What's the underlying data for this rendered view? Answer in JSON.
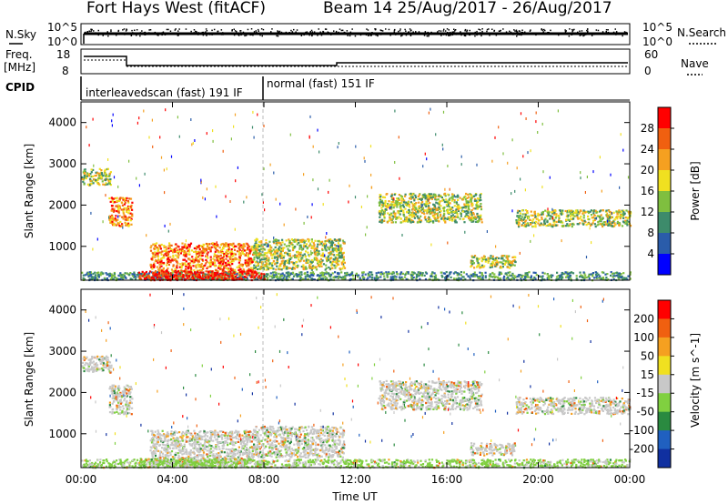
{
  "header": {
    "radar": "Fort Hays West (fitACF)",
    "beam_info": "Beam 14 25/Aug/2017 - 26/Aug/2017"
  },
  "panels": {
    "nsky_label": "N.Sky",
    "nsearch_label": "N.Search",
    "freq_label_top": "Freq.",
    "freq_label_bottom": "[MHz]",
    "nave_label": "Nave",
    "cpid_label": "CPID",
    "nsky_ticks": [
      "10^5",
      "10^0"
    ],
    "freq_ticks": [
      "18",
      "8"
    ],
    "nave_ticks": [
      "60",
      "0"
    ],
    "cpid_modes": [
      "interleavedscan (fast) 191 IF",
      "normal (fast) 151 IF"
    ]
  },
  "colors": {
    "power": [
      "#0000ff",
      "#2a5caa",
      "#3d8b6b",
      "#7fbf3f",
      "#f0e020",
      "#f5a020",
      "#f06010",
      "#ff0000"
    ],
    "velocity": [
      "#1030a0",
      "#2060c0",
      "#2a8a40",
      "#80d040",
      "#c8c8c8",
      "#f0e020",
      "#f5a020",
      "#f06010",
      "#ff0000"
    ]
  },
  "chart_data": [
    {
      "type": "heatmap",
      "quantity": "power",
      "ylabel": "Slant Range [km]",
      "xlabel": "",
      "x_ticks": [
        "00:00",
        "04:00",
        "08:00",
        "12:00",
        "16:00",
        "20:00",
        "00:00"
      ],
      "y_ticks": [
        "1000",
        "2000",
        "3000",
        "4000"
      ],
      "xlim_hours": [
        0,
        24
      ],
      "ylim_km": [
        180,
        4500
      ],
      "colorbar_label": "Power [dB]",
      "colorbar_ticks": [
        "28",
        "24",
        "20",
        "16",
        "12",
        "8",
        "4"
      ],
      "regions": [
        {
          "t0": 0.0,
          "t1": 1.3,
          "r0": 2500,
          "r1": 2900,
          "level": "mid"
        },
        {
          "t0": 1.2,
          "t1": 2.2,
          "r0": 1500,
          "r1": 2200,
          "level": "high"
        },
        {
          "t0": 3.0,
          "t1": 7.5,
          "r0": 300,
          "r1": 1100,
          "level": "high"
        },
        {
          "t0": 7.5,
          "t1": 11.5,
          "r0": 450,
          "r1": 1200,
          "level": "mid"
        },
        {
          "t0": 0.0,
          "t1": 24.0,
          "r0": 200,
          "r1": 400,
          "level": "low"
        },
        {
          "t0": 2.5,
          "t1": 8.0,
          "r0": 200,
          "r1": 420,
          "level": "max"
        },
        {
          "t0": 13.0,
          "t1": 17.5,
          "r0": 1600,
          "r1": 2300,
          "level": "mid"
        },
        {
          "t0": 17.0,
          "t1": 19.0,
          "r0": 500,
          "r1": 800,
          "level": "mid"
        },
        {
          "t0": 19.0,
          "t1": 24.0,
          "r0": 1500,
          "r1": 1900,
          "level": "mid"
        }
      ]
    },
    {
      "type": "heatmap",
      "quantity": "velocity",
      "ylabel": "Slant Range [km]",
      "xlabel": "Time UT",
      "x_ticks": [
        "00:00",
        "04:00",
        "08:00",
        "12:00",
        "16:00",
        "20:00",
        "00:00"
      ],
      "y_ticks": [
        "1000",
        "2000",
        "3000",
        "4000"
      ],
      "xlim_hours": [
        0,
        24
      ],
      "ylim_km": [
        180,
        4500
      ],
      "colorbar_label": "Velocity [m s^-1]",
      "colorbar_ticks": [
        "200",
        "100",
        "50",
        "15",
        "-15",
        "-50",
        "-100",
        "-200"
      ]
    }
  ]
}
